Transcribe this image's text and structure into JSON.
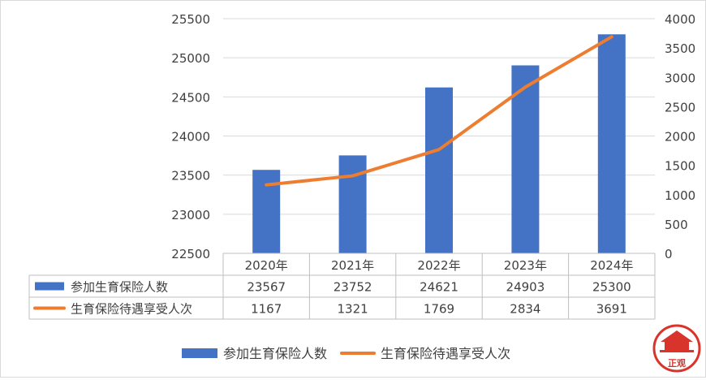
{
  "chart_data": {
    "type": "bar",
    "categories": [
      "2020年",
      "2021年",
      "2022年",
      "2023年",
      "2024年"
    ],
    "series": [
      {
        "name": "参加生育保险人数",
        "type": "bar",
        "axis": "left",
        "color": "#4472C4",
        "values": [
          23567,
          23752,
          24621,
          24903,
          25300
        ]
      },
      {
        "name": "生育保险待遇享受人次",
        "type": "line",
        "axis": "right",
        "color": "#ED7D31",
        "values": [
          1167,
          1321,
          1769,
          2834,
          3691
        ]
      }
    ],
    "y_left": {
      "min": 22500,
      "max": 25500,
      "ticks": [
        22500,
        23000,
        23500,
        24000,
        24500,
        25000,
        25500
      ]
    },
    "y_right": {
      "min": 0,
      "max": 4000,
      "ticks": [
        0,
        500,
        1000,
        1500,
        2000,
        2500,
        3000,
        3500,
        4000
      ]
    },
    "grid": true,
    "legend": "bottom",
    "data_table": true
  },
  "watermark": {
    "text": "正观",
    "color": "#d9342b"
  }
}
